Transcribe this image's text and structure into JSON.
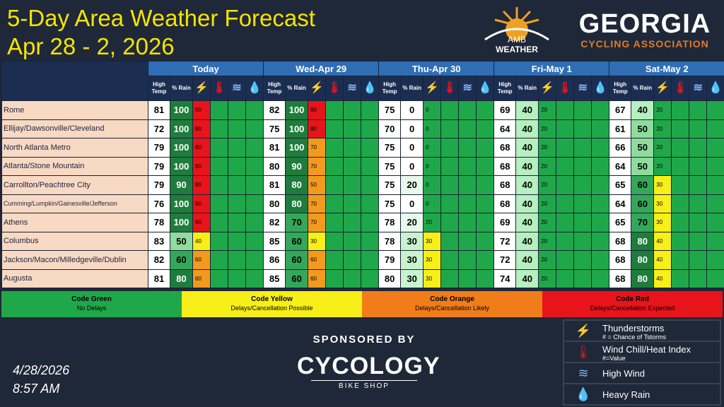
{
  "title_line1": "5-Day Area Weather Forecast",
  "title_line2": "Apr 28 - 2, 2026",
  "logos": {
    "amb_line1": "AMB",
    "amb_line2": "WEATHER",
    "ga_title": "GEORGIA",
    "ga_sub": "CYCLING ASSOCIATION"
  },
  "days": [
    "Today",
    "Wed-Apr 29",
    "Thu-Apr 30",
    "Fri-May 1",
    "Sat-May 2"
  ],
  "col_headers": {
    "high_temp": "High Temp",
    "rain": "% Rain"
  },
  "icons": {
    "thunder": "lightning-icon",
    "heat": "thermometer-icon",
    "wind": "wind-icon",
    "rain": "raindrop-icon"
  },
  "rows": [
    {
      "city": "Rome",
      "d": [
        [
          81,
          100,
          80
        ],
        [
          82,
          100,
          80
        ],
        [
          75,
          0,
          0
        ],
        [
          69,
          40,
          20
        ],
        [
          67,
          40,
          20
        ]
      ]
    },
    {
      "city": "Ellijay/Dawsonville/Cleveland",
      "d": [
        [
          72,
          100,
          80
        ],
        [
          75,
          100,
          80
        ],
        [
          70,
          0,
          0
        ],
        [
          64,
          40,
          20
        ],
        [
          61,
          50,
          20
        ]
      ]
    },
    {
      "city": "North Atlanta Metro",
      "d": [
        [
          79,
          100,
          80
        ],
        [
          81,
          100,
          70
        ],
        [
          75,
          0,
          0
        ],
        [
          68,
          40,
          20
        ],
        [
          66,
          50,
          20
        ]
      ]
    },
    {
      "city": "Atlanta/Stone Mountain",
      "d": [
        [
          79,
          100,
          80
        ],
        [
          80,
          90,
          70
        ],
        [
          75,
          0,
          0
        ],
        [
          68,
          40,
          20
        ],
        [
          64,
          50,
          20
        ]
      ]
    },
    {
      "city": "Carrollton/Peachtree City",
      "d": [
        [
          79,
          90,
          80
        ],
        [
          81,
          80,
          50
        ],
        [
          75,
          20,
          0
        ],
        [
          68,
          40,
          20
        ],
        [
          65,
          60,
          30
        ]
      ]
    },
    {
      "city": "Cumming/Lumpkin/Gainesville/Jefferson",
      "small": true,
      "d": [
        [
          76,
          100,
          80
        ],
        [
          80,
          80,
          70
        ],
        [
          75,
          0,
          0
        ],
        [
          68,
          40,
          20
        ],
        [
          64,
          60,
          30
        ]
      ]
    },
    {
      "city": "Athens",
      "d": [
        [
          78,
          100,
          80
        ],
        [
          82,
          70,
          70
        ],
        [
          78,
          20,
          20
        ],
        [
          69,
          40,
          20
        ],
        [
          65,
          70,
          30
        ]
      ]
    },
    {
      "city": "Columbus",
      "d": [
        [
          83,
          50,
          40
        ],
        [
          85,
          60,
          30
        ],
        [
          78,
          30,
          30
        ],
        [
          72,
          40,
          20
        ],
        [
          68,
          80,
          40
        ]
      ]
    },
    {
      "city": "Jackson/Macon/Milledgeville/Dublin",
      "d": [
        [
          82,
          60,
          60
        ],
        [
          86,
          60,
          60
        ],
        [
          79,
          30,
          30
        ],
        [
          72,
          40,
          20
        ],
        [
          68,
          80,
          40
        ]
      ]
    },
    {
      "city": "Augusta",
      "d": [
        [
          81,
          80,
          60
        ],
        [
          85,
          60,
          60
        ],
        [
          80,
          30,
          30
        ],
        [
          74,
          40,
          20
        ],
        [
          68,
          80,
          40
        ]
      ]
    }
  ],
  "codes": [
    {
      "name": "Code Green",
      "desc": "No Delays",
      "bg": "#1fa84a",
      "fg": "#000000"
    },
    {
      "name": "Code Yellow",
      "desc": "Delays/Cancellation Possible",
      "bg": "#f7ef17",
      "fg": "#000000"
    },
    {
      "name": "Code Orange",
      "desc": "Delays/Cancellation Likely",
      "bg": "#f07d1a",
      "fg": "#000000"
    },
    {
      "name": "Code Red",
      "desc": "Delays/Cancellation Expected",
      "bg": "#e8141b",
      "fg": "#000000"
    }
  ],
  "sponsor": {
    "label": "SPONSORED BY",
    "name": "CYCOLOGY",
    "sub": "BIKE SHOP"
  },
  "date": "4/28/2026",
  "time": "8:57 AM",
  "legend": [
    {
      "icon": "lightning-icon",
      "title": "Thunderstorms",
      "sub": "# = Chance of Tstorms"
    },
    {
      "icon": "thermometer-icon",
      "title": "Wind Chill/Heat Index",
      "sub": "#=Value"
    },
    {
      "icon": "wind-icon",
      "title": "High Wind",
      "sub": ""
    },
    {
      "icon": "raindrop-icon",
      "title": "Heavy Rain",
      "sub": ""
    }
  ]
}
